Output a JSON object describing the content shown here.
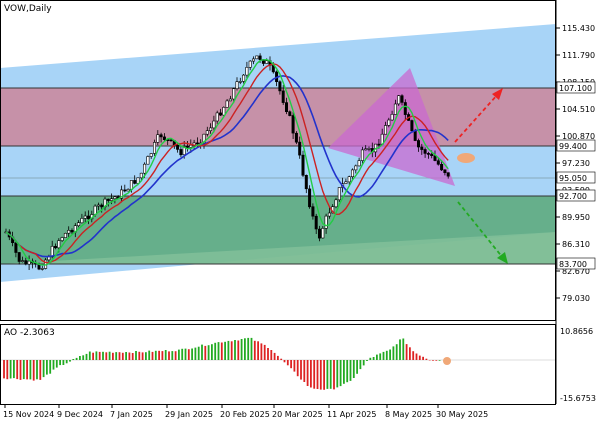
{
  "main_panel": {
    "title": "VOW,Daily",
    "price_labels": [
      "115.430",
      "111.790",
      "108.150",
      "104.510",
      "100.870",
      "97.230",
      "93.590",
      "89.950",
      "86.310",
      "82.670",
      "79.030"
    ],
    "level_labels": [
      {
        "text": "107.100",
        "bg": "#ffffff",
        "fg": "#000000"
      },
      {
        "text": "99.400",
        "bg": "#ffffff",
        "fg": "#000000"
      },
      {
        "text": "95.050",
        "bg": "#ffffff",
        "fg": "#000000"
      },
      {
        "text": "92.700",
        "bg": "#ffffff",
        "fg": "#000000"
      },
      {
        "text": "83.700",
        "bg": "#ffffff",
        "fg": "#000000"
      }
    ]
  },
  "ao_panel": {
    "title": "AO -2.3063",
    "scale_labels": [
      "10.8656",
      "-15.6753"
    ]
  },
  "time_axis": {
    "labels": [
      "15 Nov 2024",
      "9 Dec 2024",
      "7 Jan 2025",
      "29 Jan 2025",
      "20 Feb 2025",
      "20 Mar 2025",
      "11 Apr 2025",
      "8 May 2025",
      "30 May 2025"
    ]
  },
  "colors": {
    "channel": "#a8d4f7",
    "resistance_zone": "#c98a9e",
    "support_zone": "#5aa878",
    "triangle": "#c96ad0",
    "ma_fast": "#22cc44",
    "ma_mid": "#cc2222",
    "ma_slow": "#2233cc",
    "ao_up": "#22aa22",
    "ao_down": "#dd2222",
    "arrow_up": "#ee2222",
    "arrow_down": "#22aa22"
  }
}
